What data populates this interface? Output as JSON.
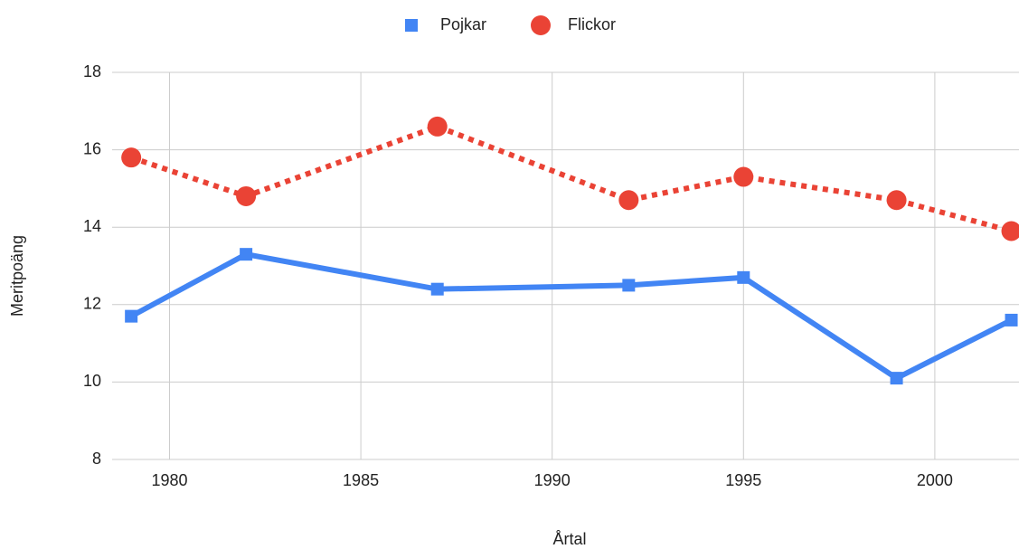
{
  "chart_data": {
    "type": "line",
    "xlabel": "Årtal",
    "ylabel": "Meritpoäng",
    "x": [
      1979,
      1982,
      1987,
      1992,
      1995,
      1999,
      2002
    ],
    "series": [
      {
        "name": "Pojkar",
        "color": "#4285f4",
        "marker": "square",
        "line_style": "solid",
        "values": [
          11.7,
          13.3,
          12.4,
          12.5,
          12.7,
          10.1,
          11.6
        ]
      },
      {
        "name": "Flickor",
        "color": "#ea4335",
        "marker": "circle",
        "line_style": "dotted",
        "values": [
          15.8,
          14.8,
          16.6,
          14.7,
          15.3,
          14.7,
          13.9
        ]
      }
    ],
    "xlim": [
      1978.5,
      2002.2
    ],
    "xticks": [
      1980,
      1985,
      1990,
      1995,
      2000
    ],
    "ylim": [
      8,
      18
    ],
    "yticks": [
      8,
      10,
      12,
      14,
      16,
      18
    ],
    "grid": true,
    "legend": "top"
  }
}
